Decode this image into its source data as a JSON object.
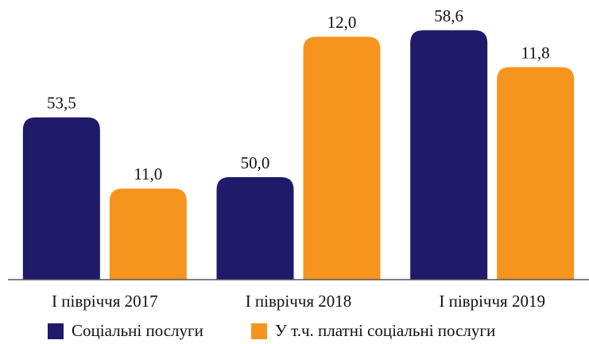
{
  "chart_data": {
    "type": "bar",
    "categories": [
      "І півріччя 2017",
      "І півріччя 2018",
      "І півріччя 2019"
    ],
    "series": [
      {
        "name": "Соціальні послуги",
        "color": "#201a6b",
        "values": [
          53.5,
          50.0,
          58.6
        ],
        "value_labels": [
          "53,5",
          "50,0",
          "58,6"
        ]
      },
      {
        "name": "У т.ч. платні соціальні послуги",
        "color": "#f7941d",
        "axis": "y2",
        "values": [
          11.0,
          12.0,
          11.8
        ],
        "value_labels": [
          "11,0",
          "12,0",
          "11,8"
        ]
      }
    ],
    "ylim": [
      44,
      60
    ],
    "y2lim": [
      10.4,
      12.2
    ],
    "legend": "bottom"
  }
}
